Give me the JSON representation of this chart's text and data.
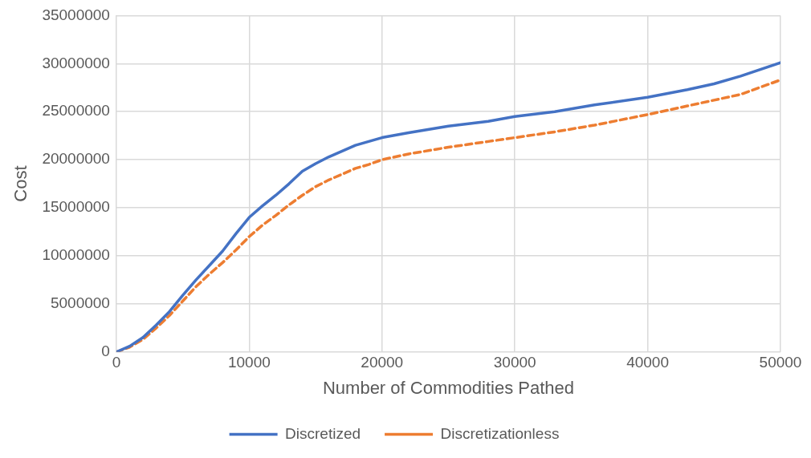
{
  "chart_data": {
    "type": "line",
    "xlabel": "Number of Commodities Pathed",
    "ylabel": "Cost",
    "x": [
      0,
      1000,
      2000,
      3000,
      4000,
      5000,
      6000,
      7000,
      8000,
      9000,
      10000,
      11000,
      12000,
      13000,
      14000,
      15000,
      16000,
      17000,
      18000,
      19000,
      20000,
      22000,
      25000,
      28000,
      30000,
      33000,
      36000,
      40000,
      43000,
      45000,
      47000,
      50000
    ],
    "series": [
      {
        "name": "Discretized",
        "color": "#4472c4",
        "line_style": "solid",
        "values": [
          0,
          600000,
          1500000,
          2800000,
          4200000,
          5900000,
          7500000,
          9000000,
          10500000,
          12300000,
          14000000,
          15200000,
          16300000,
          17500000,
          18800000,
          19600000,
          20300000,
          20900000,
          21500000,
          21900000,
          22300000,
          22800000,
          23500000,
          24000000,
          24500000,
          25000000,
          25700000,
          26500000,
          27300000,
          27900000,
          28700000,
          30100000
        ]
      },
      {
        "name": "Discretizationless",
        "color": "#ed7d31",
        "line_style": "dashed",
        "values": [
          0,
          500000,
          1300000,
          2500000,
          3800000,
          5300000,
          6800000,
          8100000,
          9300000,
          10600000,
          12000000,
          13200000,
          14200000,
          15300000,
          16300000,
          17200000,
          17900000,
          18500000,
          19100000,
          19500000,
          20000000,
          20600000,
          21300000,
          21900000,
          22300000,
          22900000,
          23600000,
          24700000,
          25600000,
          26200000,
          26800000,
          28300000
        ]
      }
    ],
    "xlim": [
      0,
      50000
    ],
    "xticks": [
      0,
      10000,
      20000,
      30000,
      40000,
      50000
    ],
    "ylim": [
      0,
      35000000
    ],
    "yticks": [
      0,
      5000000,
      10000000,
      15000000,
      20000000,
      25000000,
      30000000,
      35000000
    ],
    "grid": true,
    "legend": "bottom",
    "marker": "none"
  }
}
